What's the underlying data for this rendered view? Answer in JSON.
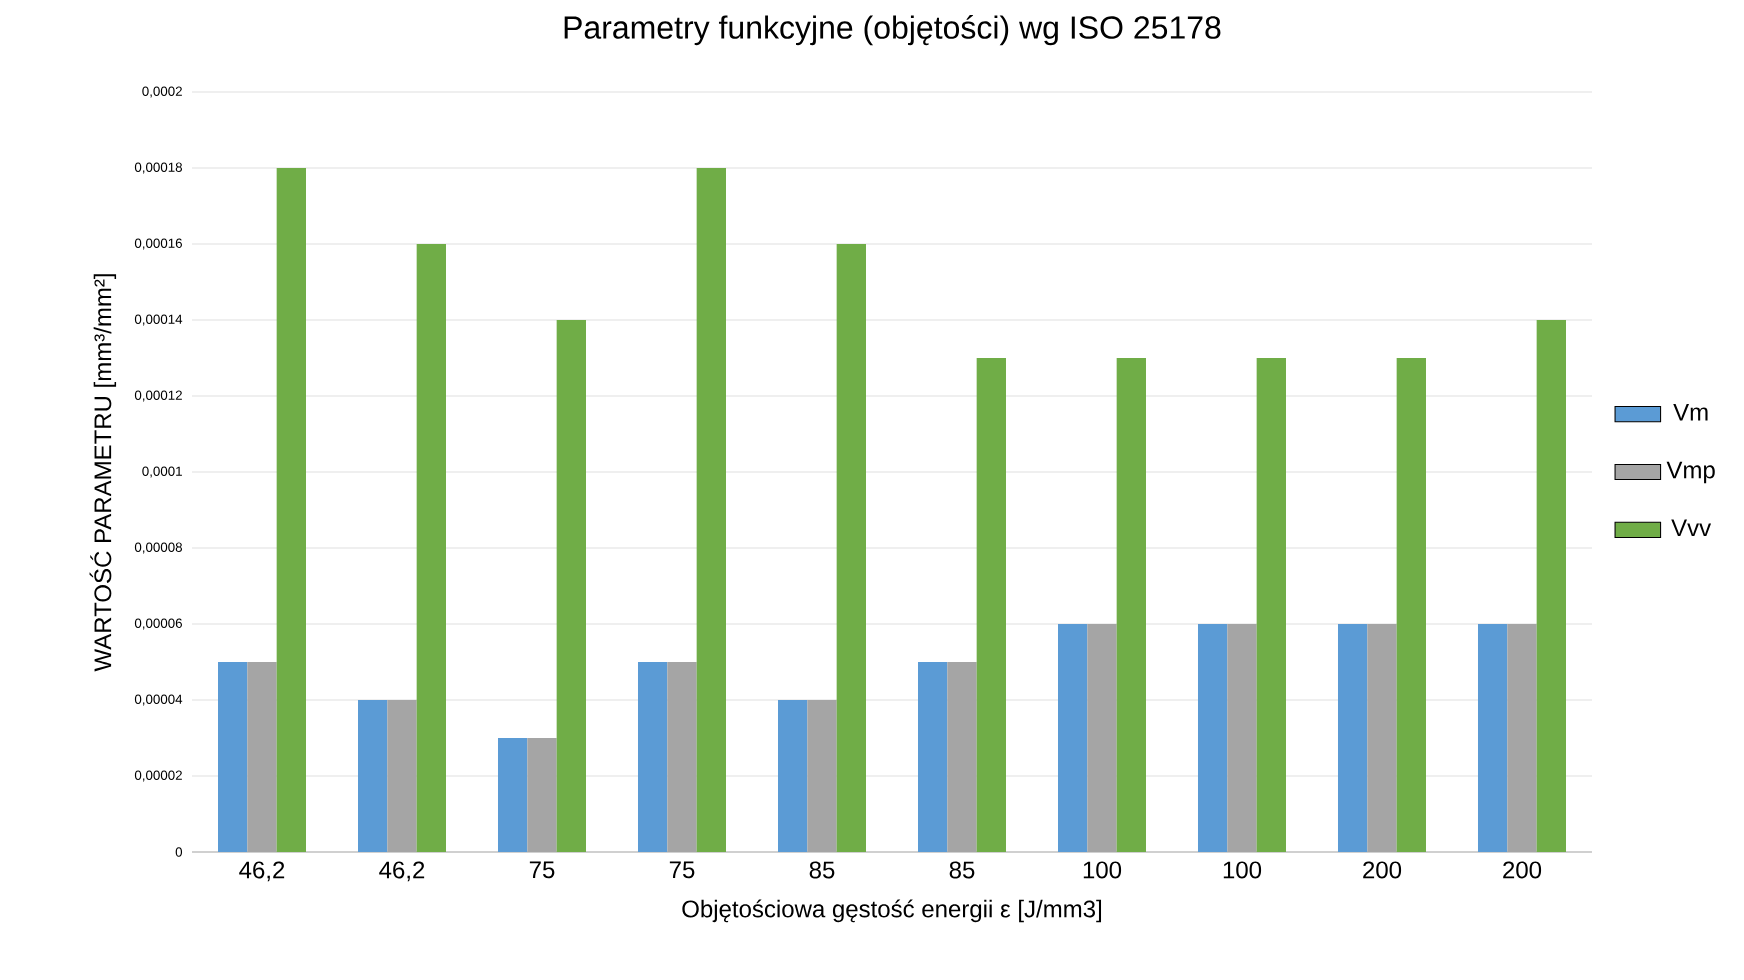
{
  "chart_data": {
    "type": "bar",
    "title": "Parametry funkcyjne (objętości) wg ISO 25178",
    "xlabel": "Objętościowa gęstość energii ε [J/mm3]",
    "ylabel": "WARTOŚĆ PARAMETRU [mm³/mm²]",
    "categories": [
      "46,2",
      "46,2",
      "75",
      "75",
      "85",
      "85",
      "100",
      "100",
      "200",
      "200"
    ],
    "series": [
      {
        "name": "Vm",
        "color": "#5b9bd5",
        "values": [
          5e-05,
          4e-05,
          3e-05,
          5e-05,
          4e-05,
          5e-05,
          6e-05,
          6e-05,
          6e-05,
          6e-05
        ]
      },
      {
        "name": "Vmp",
        "color": "#a5a5a5",
        "values": [
          5e-05,
          4e-05,
          3e-05,
          5e-05,
          4e-05,
          5e-05,
          6e-05,
          6e-05,
          6e-05,
          6e-05
        ]
      },
      {
        "name": "Vvv",
        "color": "#70ad47",
        "values": [
          0.00018,
          0.00016,
          0.00014,
          0.00018,
          0.00016,
          0.00013,
          0.00013,
          0.00013,
          0.00013,
          0.00014
        ]
      }
    ],
    "ylim": [
      0,
      0.0002
    ],
    "yticks": [
      0,
      {
        "value": 2e-05,
        "label": "0,00002"
      },
      {
        "value": 4e-05,
        "label": "0,00004"
      },
      {
        "value": 6e-05,
        "label": "0,00006"
      },
      {
        "value": 8e-05,
        "label": "0,00008"
      },
      {
        "value": 0.0001,
        "label": "0,0001"
      },
      {
        "value": 0.00012,
        "label": "0,00012"
      },
      {
        "value": 0.00014,
        "label": "0,00014"
      },
      {
        "value": 0.00016,
        "label": "0,00016"
      },
      {
        "value": 0.00018,
        "label": "0,00018"
      },
      {
        "value": 0.0002,
        "label": "0,0002"
      }
    ],
    "grid": "y",
    "legend": "right"
  }
}
